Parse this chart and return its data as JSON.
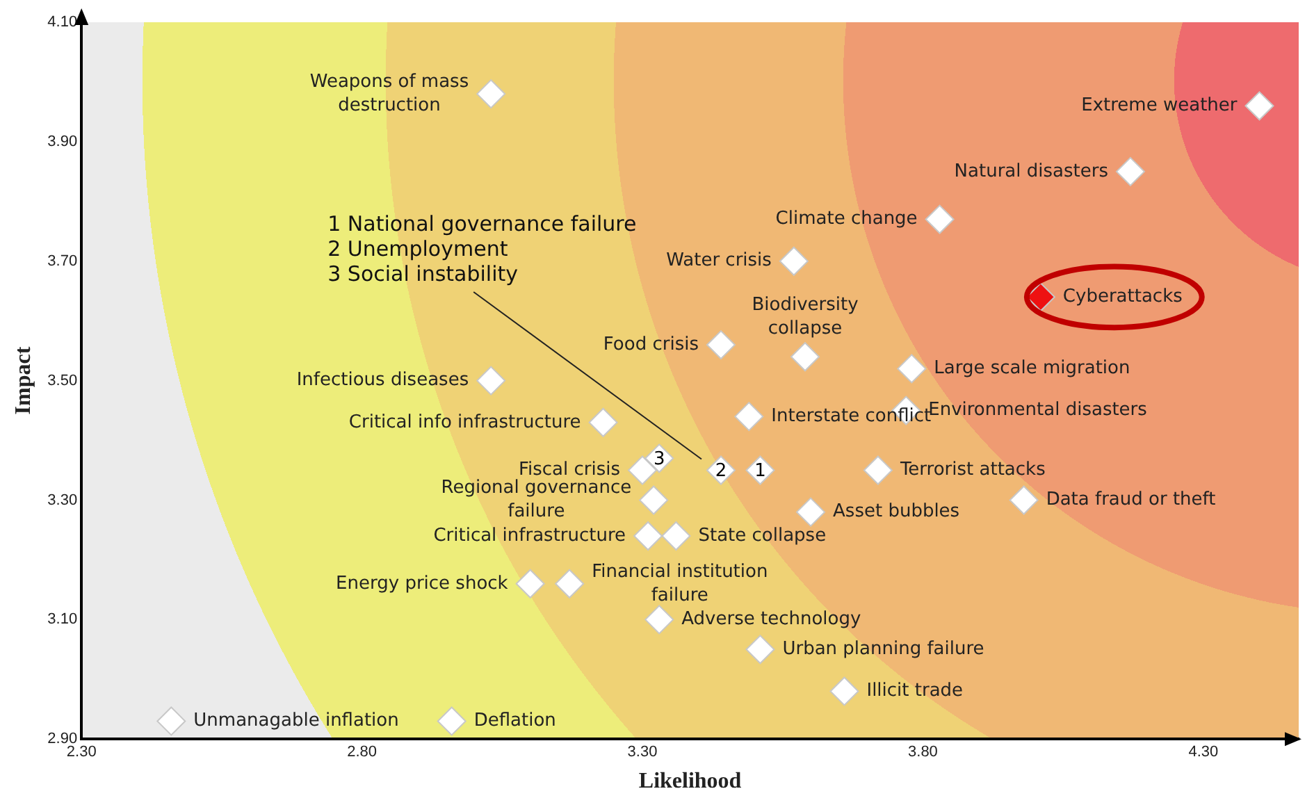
{
  "chart_data": {
    "type": "scatter",
    "xlabel": "Likelihood",
    "ylabel": "Impact",
    "marker": "diamond",
    "grid": false,
    "legend": false,
    "xlim": [
      2.3,
      4.47
    ],
    "ylim": [
      2.9,
      4.1
    ],
    "xticks": [
      {
        "value": 2.3,
        "label": "2.30"
      },
      {
        "value": 2.8,
        "label": "2.80"
      },
      {
        "value": 3.3,
        "label": "3.30"
      },
      {
        "value": 3.8,
        "label": "3.80"
      },
      {
        "value": 4.3,
        "label": "4.30"
      }
    ],
    "yticks": [
      {
        "value": 2.9,
        "label": "2.90"
      },
      {
        "value": 3.1,
        "label": "3.10"
      },
      {
        "value": 3.3,
        "label": "3.30"
      },
      {
        "value": 3.5,
        "label": "3.50"
      },
      {
        "value": 3.7,
        "label": "3.70"
      },
      {
        "value": 3.9,
        "label": "3.90"
      },
      {
        "value": 4.1,
        "label": "4.10"
      }
    ],
    "x": [
      3.03,
      4.4,
      4.17,
      3.83,
      3.57,
      4.01,
      3.44,
      3.59,
      3.78,
      3.03,
      3.77,
      3.23,
      3.49,
      3.3,
      3.33,
      3.44,
      3.51,
      3.72,
      3.32,
      3.98,
      3.6,
      3.31,
      3.36,
      3.1,
      3.17,
      3.33,
      3.51,
      3.66,
      2.96,
      2.46
    ],
    "values": [
      3.98,
      3.96,
      3.85,
      3.77,
      3.7,
      3.64,
      3.56,
      3.54,
      3.52,
      3.5,
      3.45,
      3.43,
      3.44,
      3.35,
      3.37,
      3.35,
      3.35,
      3.35,
      3.3,
      3.3,
      3.28,
      3.24,
      3.24,
      3.16,
      3.16,
      3.1,
      3.05,
      2.98,
      2.93,
      2.93
    ],
    "colors": [
      "#ffffff",
      "#ffffff",
      "#ffffff",
      "#ffffff",
      "#ffffff",
      "#ee1111",
      "#ffffff",
      "#ffffff",
      "#ffffff",
      "#ffffff",
      "#ffffff",
      "#ffffff",
      "#ffffff",
      "#ffffff",
      "#ffffff",
      "#ffffff",
      "#ffffff",
      "#ffffff",
      "#ffffff",
      "#ffffff",
      "#ffffff",
      "#ffffff",
      "#ffffff",
      "#ffffff",
      "#ffffff",
      "#ffffff",
      "#ffffff",
      "#ffffff",
      "#ffffff",
      "#ffffff"
    ],
    "annotations": [
      {
        "text": "Weapons of mass destruction",
        "x": 3.03,
        "y": 3.98
      },
      {
        "text": "Extreme weather",
        "x": 4.4,
        "y": 3.96
      },
      {
        "text": "Natural disasters",
        "x": 4.17,
        "y": 3.85
      },
      {
        "text": "Climate change",
        "x": 3.83,
        "y": 3.77
      },
      {
        "text": "Water crisis",
        "x": 3.57,
        "y": 3.7
      },
      {
        "text": "Cyberattacks",
        "x": 4.01,
        "y": 3.64
      },
      {
        "text": "Food crisis",
        "x": 3.44,
        "y": 3.56
      },
      {
        "text": "Biodiversity collapse",
        "x": 3.59,
        "y": 3.54
      },
      {
        "text": "Large scale migration",
        "x": 3.78,
        "y": 3.52
      },
      {
        "text": "Infectious diseases",
        "x": 3.03,
        "y": 3.5
      },
      {
        "text": "Environmental disasters",
        "x": 3.77,
        "y": 3.45
      },
      {
        "text": "Critical info infrastructure",
        "x": 3.23,
        "y": 3.43
      },
      {
        "text": "Interstate conflict",
        "x": 3.49,
        "y": 3.44
      },
      {
        "text": "Fiscal crisis",
        "x": 3.3,
        "y": 3.35
      },
      {
        "text": "3",
        "x": 3.33,
        "y": 3.37
      },
      {
        "text": "2",
        "x": 3.44,
        "y": 3.35
      },
      {
        "text": "1",
        "x": 3.51,
        "y": 3.35
      },
      {
        "text": "Terrorist attacks",
        "x": 3.72,
        "y": 3.35
      },
      {
        "text": "Regional governance failure",
        "x": 3.32,
        "y": 3.3
      },
      {
        "text": "Data fraud or theft",
        "x": 3.98,
        "y": 3.3
      },
      {
        "text": "Asset bubbles",
        "x": 3.6,
        "y": 3.28
      },
      {
        "text": "Critical infrastructure",
        "x": 3.31,
        "y": 3.24
      },
      {
        "text": "State collapse",
        "x": 3.36,
        "y": 3.24
      },
      {
        "text": "Energy price shock",
        "x": 3.1,
        "y": 3.16
      },
      {
        "text": "Financial institution failure",
        "x": 3.17,
        "y": 3.16
      },
      {
        "text": "Adverse technology",
        "x": 3.33,
        "y": 3.1
      },
      {
        "text": "Urban planning failure",
        "x": 3.51,
        "y": 3.05
      },
      {
        "text": "Illicit trade",
        "x": 3.66,
        "y": 2.98
      },
      {
        "text": "Deflation",
        "x": 2.96,
        "y": 2.93
      },
      {
        "text": "Unmanagable inflation",
        "x": 2.46,
        "y": 2.93
      },
      "1 National governance failure",
      "2 Unemployment",
      "3 Social instability"
    ]
  }
}
